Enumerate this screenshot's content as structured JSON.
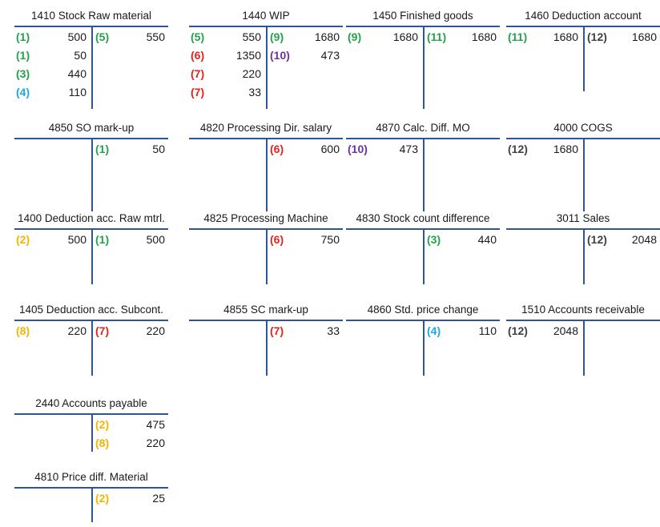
{
  "colors": {
    "line": "#2f5597",
    "ref_colors": {
      "green": "#22a34a",
      "red": "#e2231a",
      "purple": "#7030a0",
      "blue": "#1fa8e0",
      "orange": "#f6b400",
      "gray": "#404040"
    }
  },
  "accounts": [
    {
      "name": "1410 Stock Raw material",
      "debit": [
        {
          "ref": "(1)",
          "amount": "500",
          "color": "green"
        },
        {
          "ref": "(1)",
          "amount": "50",
          "color": "green"
        },
        {
          "ref": "(3)",
          "amount": "440",
          "color": "green"
        },
        {
          "ref": "(4)",
          "amount": "110",
          "color": "blue"
        }
      ],
      "credit": [
        {
          "ref": "(5)",
          "amount": "550",
          "color": "green"
        }
      ]
    },
    {
      "name": "1440 WIP",
      "debit": [
        {
          "ref": "(5)",
          "amount": "550",
          "color": "green"
        },
        {
          "ref": "(6)",
          "amount": "1350",
          "color": "red"
        },
        {
          "ref": "(7)",
          "amount": "220",
          "color": "red"
        },
        {
          "ref": "(7)",
          "amount": "33",
          "color": "red"
        }
      ],
      "credit": [
        {
          "ref": "(9)",
          "amount": "1680",
          "color": "green"
        },
        {
          "ref": "(10)",
          "amount": "473",
          "color": "purple"
        }
      ]
    },
    {
      "name": "1450 Finished goods",
      "debit": [
        {
          "ref": "(9)",
          "amount": "1680",
          "color": "green"
        }
      ],
      "credit": [
        {
          "ref": "(11)",
          "amount": "1680",
          "color": "green"
        }
      ]
    },
    {
      "name": "1460 Deduction account",
      "debit": [
        {
          "ref": "(11)",
          "amount": "1680",
          "color": "green"
        }
      ],
      "credit": [
        {
          "ref": "(12)",
          "amount": "1680",
          "color": "gray"
        }
      ]
    },
    {
      "name": "4850 SO mark-up",
      "debit": [],
      "credit": [
        {
          "ref": "(1)",
          "amount": "50",
          "color": "green"
        }
      ]
    },
    {
      "name": "4820 Processing Dir. salary",
      "debit": [],
      "credit": [
        {
          "ref": "(6)",
          "amount": "600",
          "color": "red"
        }
      ]
    },
    {
      "name": "4870 Calc. Diff. MO",
      "debit": [
        {
          "ref": "(10)",
          "amount": "473",
          "color": "purple"
        }
      ],
      "credit": []
    },
    {
      "name": "4000 COGS",
      "debit": [
        {
          "ref": "(12)",
          "amount": "1680",
          "color": "gray"
        }
      ],
      "credit": []
    },
    {
      "name": "1400 Deduction acc. Raw mtrl.",
      "debit": [
        {
          "ref": "(2)",
          "amount": "500",
          "color": "orange"
        }
      ],
      "credit": [
        {
          "ref": "(1)",
          "amount": "500",
          "color": "green"
        }
      ]
    },
    {
      "name": "4825 Processing Machine",
      "debit": [],
      "credit": [
        {
          "ref": "(6)",
          "amount": "750",
          "color": "red"
        }
      ]
    },
    {
      "name": "4830 Stock count difference",
      "debit": [],
      "credit": [
        {
          "ref": "(3)",
          "amount": "440",
          "color": "green"
        }
      ]
    },
    {
      "name": "3011 Sales",
      "debit": [],
      "credit": [
        {
          "ref": "(12)",
          "amount": "2048",
          "color": "gray"
        }
      ]
    },
    {
      "name": "1405 Deduction acc. Subcont.",
      "debit": [
        {
          "ref": "(8)",
          "amount": "220",
          "color": "orange"
        }
      ],
      "credit": [
        {
          "ref": "(7)",
          "amount": "220",
          "color": "red"
        }
      ]
    },
    {
      "name": "4855 SC mark-up",
      "debit": [],
      "credit": [
        {
          "ref": "(7)",
          "amount": "33",
          "color": "red"
        }
      ]
    },
    {
      "name": "4860 Std. price change",
      "debit": [],
      "credit": [
        {
          "ref": "(4)",
          "amount": "110",
          "color": "blue"
        }
      ]
    },
    {
      "name": "1510 Accounts receivable",
      "debit": [
        {
          "ref": "(12)",
          "amount": "2048",
          "color": "gray"
        }
      ],
      "credit": []
    },
    {
      "name": "2440 Accounts payable",
      "debit": [],
      "credit": [
        {
          "ref": "(2)",
          "amount": "475",
          "color": "orange"
        },
        {
          "ref": "(8)",
          "amount": "220",
          "color": "orange"
        }
      ]
    },
    {
      "name": "4810 Price diff. Material",
      "debit": [],
      "credit": [
        {
          "ref": "(2)",
          "amount": "25",
          "color": "orange"
        }
      ]
    }
  ]
}
